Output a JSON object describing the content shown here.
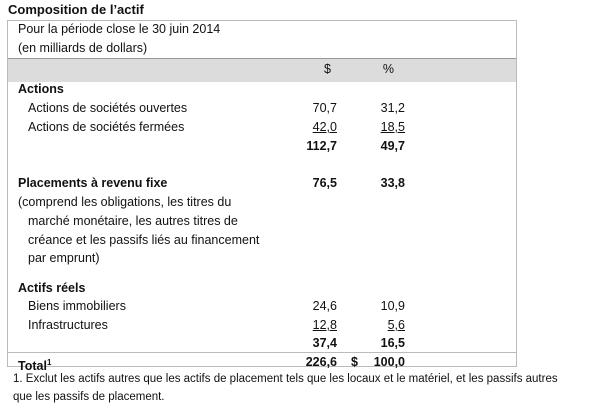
{
  "title": "Composition de l’actif",
  "subtitle1": "Pour la période close le 30 juin 2014",
  "subtitle2": "(en milliards de dollars)",
  "columns": {
    "dollars": "$",
    "percent": "%"
  },
  "sections": [
    {
      "heading": "Actions",
      "rows": [
        {
          "label": "Actions de sociétés ouvertes",
          "dollars": "70,7",
          "percent": "31,2"
        },
        {
          "label": "Actions de sociétés fermées",
          "dollars": "42,0",
          "percent": "18,5"
        }
      ],
      "subtotal": {
        "dollars": "112,7",
        "percent": "49,7"
      }
    },
    {
      "heading": "Placements à revenu fixe",
      "dollars": "76,5",
      "percent": "33,8",
      "note": [
        "(comprend les obligations, les titres du",
        "marché monétaire, les autres titres de",
        "créance et les passifs liés au financement",
        "par emprunt)"
      ]
    },
    {
      "heading": "Actifs réels",
      "rows": [
        {
          "label": "Biens immobiliers",
          "dollars": "24,6",
          "percent": "10,9"
        },
        {
          "label": "Infrastructures",
          "dollars": "12,8",
          "percent": "5,6"
        }
      ],
      "subtotal": {
        "dollars": "37,4",
        "percent": "16,5"
      }
    }
  ],
  "total": {
    "label": "Total",
    "footnote_marker": "1",
    "dollars": "226,6",
    "currency": "$",
    "percent": "100,0"
  },
  "footnote": [
    "1.  Exclut les actifs autres que les actifs de placement tels que les locaux et le matériel, et les passifs autres",
    "que les passifs de placement."
  ]
}
